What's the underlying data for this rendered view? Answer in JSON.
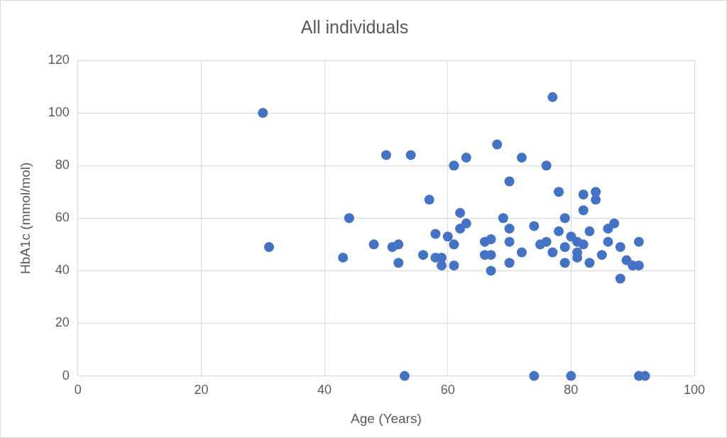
{
  "chart_data": {
    "type": "scatter",
    "title": "All individuals",
    "x_label": "Age (Years)",
    "y_label": "HbA1c (mmol/mol)",
    "x": [
      30,
      31,
      43,
      44,
      48,
      50,
      51,
      52,
      52,
      53,
      54,
      56,
      57,
      58,
      58,
      59,
      59,
      60,
      61,
      61,
      61,
      62,
      62,
      63,
      63,
      68,
      66,
      66,
      67,
      67,
      67,
      69,
      70,
      70,
      70,
      70,
      72,
      72,
      74,
      74,
      75,
      76,
      76,
      77,
      77,
      78,
      78,
      79,
      79,
      79,
      80,
      80,
      81,
      81,
      81,
      82,
      82,
      82,
      83,
      83,
      84,
      84,
      85,
      86,
      86,
      87,
      88,
      88,
      89,
      90,
      91,
      91,
      91,
      92
    ],
    "values": [
      100,
      49,
      45,
      60,
      50,
      84,
      49,
      50,
      43,
      0,
      84,
      46,
      67,
      54,
      45,
      45,
      42,
      53,
      50,
      42,
      80,
      62,
      56,
      58,
      83,
      88,
      51,
      46,
      52,
      46,
      40,
      60,
      74,
      56,
      51,
      43,
      83,
      47,
      0,
      57,
      50,
      51,
      80,
      106,
      47,
      70,
      55,
      60,
      49,
      43,
      53,
      0,
      51,
      45,
      47,
      69,
      63,
      50,
      55,
      43,
      67,
      70,
      46,
      56,
      51,
      58,
      49,
      37,
      44,
      42,
      51,
      42,
      0,
      0
    ],
    "color": "#4472c4",
    "marker": "circle",
    "xlim": [
      0,
      100
    ],
    "xticks": [
      0,
      20,
      40,
      60,
      80,
      100
    ],
    "ylim": [
      0,
      120
    ],
    "yticks": [
      0,
      20,
      40,
      60,
      80,
      100,
      120
    ],
    "grid": true
  }
}
